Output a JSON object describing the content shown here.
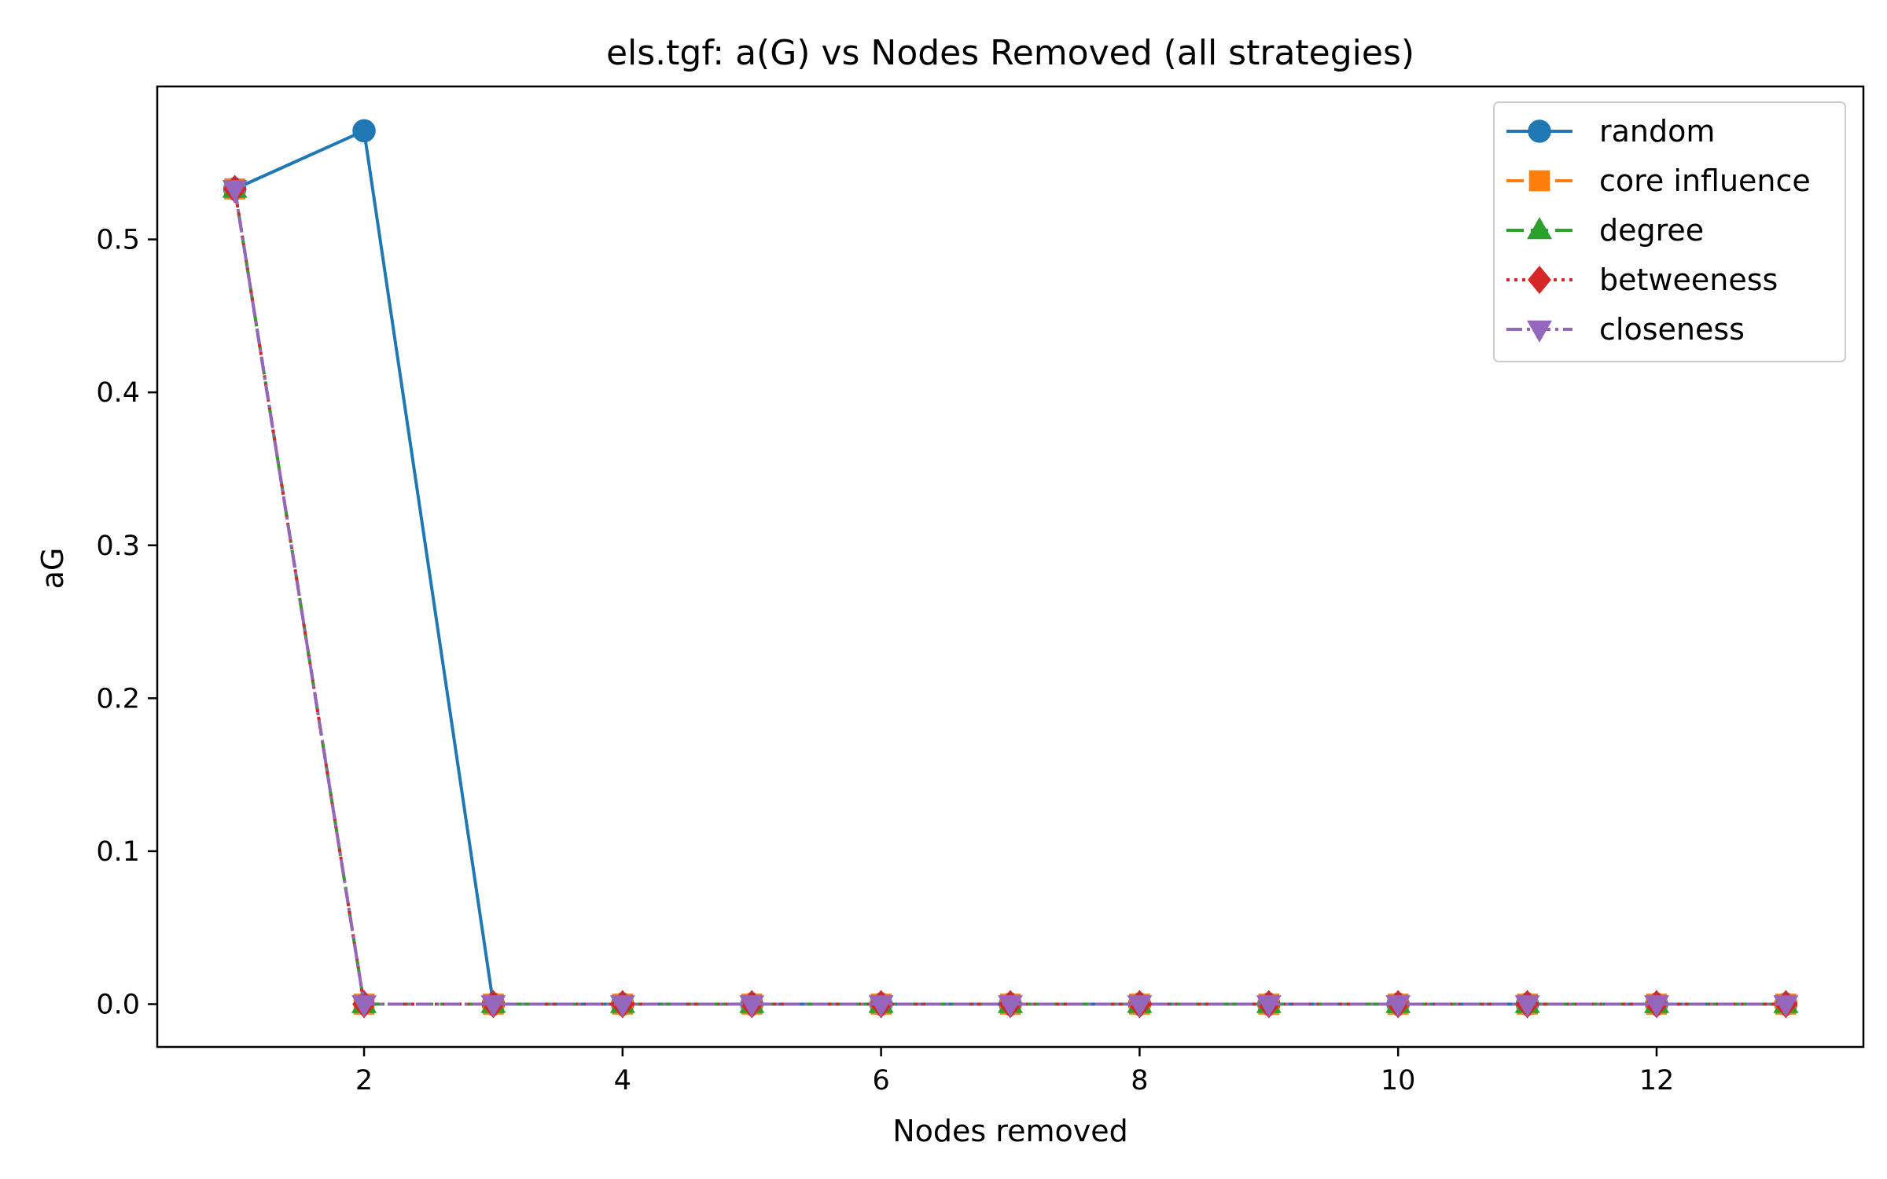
{
  "chart_data": {
    "type": "line",
    "title": "els.tgf: a(G) vs Nodes Removed (all strategies)",
    "xlabel": "Nodes removed",
    "ylabel": "aG",
    "xlim": [
      0.4,
      13.6
    ],
    "ylim": [
      -0.028,
      0.6
    ],
    "xticks": [
      2,
      4,
      6,
      8,
      10,
      12
    ],
    "yticks": [
      0.0,
      0.1,
      0.2,
      0.3,
      0.4,
      0.5
    ],
    "ytick_labels": [
      "0.0",
      "0.1",
      "0.2",
      "0.3",
      "0.4",
      "0.5"
    ],
    "grid": false,
    "legend_position": "top-right",
    "x": [
      1,
      2,
      3,
      4,
      5,
      6,
      7,
      8,
      9,
      10,
      11,
      12,
      13
    ],
    "series": [
      {
        "name": "random",
        "color": "#1f77b4",
        "marker": "circle",
        "linestyle": "solid",
        "values": [
          0.533,
          0.571,
          0,
          0,
          0,
          0,
          0,
          0,
          0,
          0,
          0,
          0,
          0
        ]
      },
      {
        "name": "core influence",
        "color": "#ff7f0e",
        "marker": "square",
        "linestyle": "dashed",
        "values": [
          0.533,
          0,
          0,
          0,
          0,
          0,
          0,
          0,
          0,
          0,
          0,
          0,
          0
        ]
      },
      {
        "name": "degree",
        "color": "#2ca02c",
        "marker": "triangle-up",
        "linestyle": "dashed",
        "values": [
          0.533,
          0,
          0,
          0,
          0,
          0,
          0,
          0,
          0,
          0,
          0,
          0,
          0
        ]
      },
      {
        "name": "betweeness",
        "color": "#d62728",
        "marker": "diamond",
        "linestyle": "dotted",
        "values": [
          0.533,
          0,
          0,
          0,
          0,
          0,
          0,
          0,
          0,
          0,
          0,
          0,
          0
        ]
      },
      {
        "name": "closeness",
        "color": "#9467bd",
        "marker": "triangle-down",
        "linestyle": "dashdot",
        "values": [
          0.533,
          0,
          0,
          0,
          0,
          0,
          0,
          0,
          0,
          0,
          0,
          0,
          0
        ]
      }
    ]
  }
}
